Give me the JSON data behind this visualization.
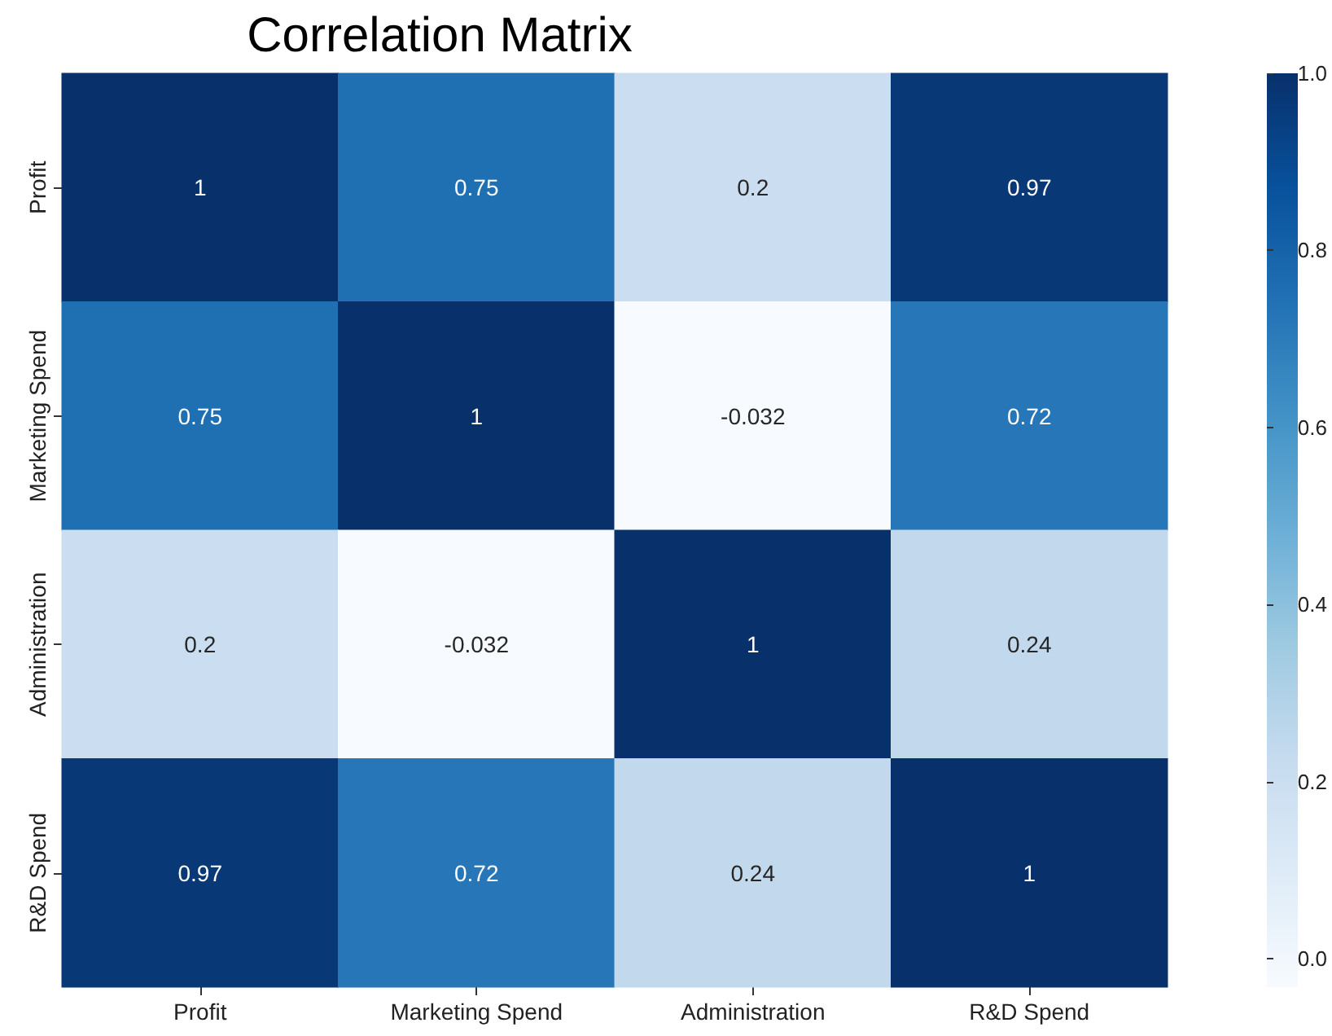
{
  "chart_data": {
    "type": "heatmap",
    "title": "Correlation Matrix",
    "categories": [
      "Profit",
      "Marketing Spend",
      "Administration",
      "R&D Spend"
    ],
    "y_categories": [
      "Profit",
      "Marketing Spend",
      "Administration",
      "R&D Spend"
    ],
    "cells": [
      [
        1,
        0.75,
        0.2,
        0.97
      ],
      [
        0.75,
        1,
        -0.032,
        0.72
      ],
      [
        0.2,
        -0.032,
        1,
        0.24
      ],
      [
        0.97,
        0.72,
        0.24,
        1
      ]
    ],
    "data_labels": true,
    "clim": [
      -0.032,
      1
    ],
    "cticks": [
      {
        "value": 0,
        "label": "0.0"
      },
      {
        "value": 0.2,
        "label": "0.2"
      },
      {
        "value": 0.4,
        "label": "0.4"
      },
      {
        "value": 0.6,
        "label": "0.6"
      },
      {
        "value": 0.8,
        "label": "0.8"
      },
      {
        "value": 1,
        "label": "1.0"
      }
    ]
  }
}
